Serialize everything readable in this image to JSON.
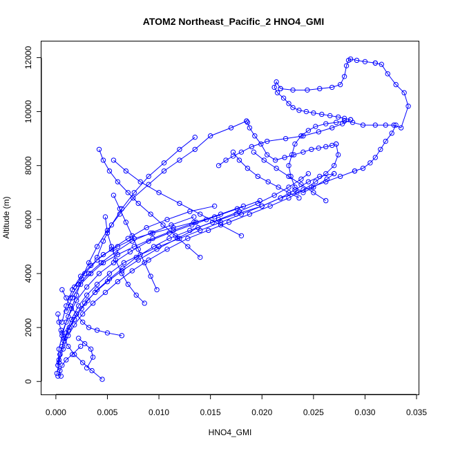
{
  "chart_data": {
    "type": "line",
    "title": "ATOM2 Northeast_Pacific_2 HNO4_GMI",
    "xlabel": "HNO4_GMI",
    "ylabel": "Altitude (m)",
    "xlim": [
      -0.0014,
      0.0352
    ],
    "ylim": [
      -480,
      12600
    ],
    "x_ticks": [
      0.0,
      0.005,
      0.01,
      0.015,
      0.02,
      0.025,
      0.03,
      0.035
    ],
    "x_tick_labels": [
      "0.000",
      "0.005",
      "0.010",
      "0.015",
      "0.020",
      "0.025",
      "0.030",
      "0.035"
    ],
    "y_ticks": [
      0,
      2000,
      4000,
      6000,
      8000,
      10000,
      12000
    ],
    "y_tick_labels": [
      "0",
      "2000",
      "4000",
      "6000",
      "8000",
      "10000",
      "12000"
    ],
    "marker": "open-circle",
    "color": "#0000ff",
    "series": [
      {
        "x": [
          0.0005,
          0.0002,
          0.0004,
          0.0008,
          0.0012,
          0.0018,
          0.0025,
          0.0031,
          0.004,
          0.0052,
          0.0065,
          0.0078,
          0.0095,
          0.011,
          0.013,
          0.0152,
          0.0175,
          0.02,
          0.0218,
          0.0232,
          0.0245,
          0.0256,
          0.027
        ],
        "y": [
          200,
          600,
          1000,
          1500,
          1900,
          2300,
          2700,
          3000,
          3400,
          3800,
          4200,
          4600,
          5000,
          5300,
          5600,
          5900,
          6200,
          6500,
          6800,
          7100,
          7400,
          7600,
          7700
        ]
      },
      {
        "x": [
          0.027,
          0.0263,
          0.025,
          0.024,
          0.0232,
          0.0228,
          0.0226,
          0.0229,
          0.0232,
          0.0238,
          0.0245,
          0.0252,
          0.0262,
          0.0272,
          0.028,
          0.0288,
          0.0298,
          0.031,
          0.032,
          0.0328,
          0.0335,
          0.0342,
          0.0338,
          0.033,
          0.0322,
          0.0316,
          0.031
        ],
        "y": [
          7700,
          7500,
          7200,
          7000,
          7200,
          7600,
          8000,
          8400,
          8800,
          9100,
          9300,
          9450,
          9550,
          9600,
          9650,
          9600,
          9500,
          9500,
          9500,
          9500,
          9400,
          10200,
          10700,
          11000,
          11400,
          11750,
          11800
        ]
      },
      {
        "x": [
          0.031,
          0.03,
          0.0292,
          0.0286,
          0.0284,
          0.0282,
          0.028,
          0.0276,
          0.0268,
          0.0256,
          0.0244,
          0.023,
          0.0218
        ],
        "y": [
          11800,
          11850,
          11900,
          11950,
          11900,
          11700,
          11300,
          11000,
          10900,
          10850,
          10800,
          10800,
          10850
        ]
      },
      {
        "x": [
          0.0218,
          0.0214,
          0.0212,
          0.0215,
          0.0221,
          0.0226,
          0.023,
          0.0236,
          0.0243,
          0.025,
          0.0258,
          0.0266,
          0.0274,
          0.028,
          0.0286
        ],
        "y": [
          10850,
          11100,
          10900,
          10700,
          10500,
          10300,
          10150,
          10050,
          10000,
          9950,
          9900,
          9850,
          9800,
          9750,
          9700
        ]
      },
      {
        "x": [
          0.0286,
          0.0278,
          0.0268,
          0.0255,
          0.024,
          0.0223,
          0.0205,
          0.019,
          0.018,
          0.0172,
          0.0165,
          0.0158
        ],
        "y": [
          9700,
          9550,
          9400,
          9250,
          9100,
          9000,
          8900,
          8700,
          8500,
          8350,
          8200,
          8000
        ]
      },
      {
        "x": [
          0.0001,
          0.0003,
          0.0007,
          0.0012,
          0.0018,
          0.0026,
          0.0036,
          0.0048,
          0.006,
          0.0074,
          0.009,
          0.0108,
          0.0128,
          0.0148,
          0.0168,
          0.0188,
          0.0208,
          0.0226,
          0.024,
          0.0252,
          0.0262,
          0.027,
          0.0274,
          0.0272
        ],
        "y": [
          300,
          700,
          1200,
          1700,
          2100,
          2500,
          2900,
          3300,
          3700,
          4100,
          4500,
          4900,
          5300,
          5600,
          5900,
          6200,
          6500,
          6800,
          7100,
          7400,
          7700,
          8000,
          8400,
          8800
        ]
      },
      {
        "x": [
          0.0272,
          0.0268,
          0.0262,
          0.0255,
          0.0248,
          0.024,
          0.0231,
          0.0222,
          0.0213,
          0.0205,
          0.0199,
          0.0193,
          0.0188,
          0.0186,
          0.0185
        ],
        "y": [
          8800,
          8750,
          8700,
          8650,
          8600,
          8500,
          8400,
          8300,
          8200,
          8400,
          8800,
          9100,
          9400,
          9600,
          9650
        ]
      },
      {
        "x": [
          0.0185,
          0.017,
          0.015,
          0.0135,
          0.012,
          0.0105,
          0.009,
          0.0075,
          0.0062,
          0.005,
          0.004,
          0.0032,
          0.0025,
          0.002,
          0.0015,
          0.001,
          0.0006,
          0.0003,
          0.0002
        ],
        "y": [
          9650,
          9400,
          9100,
          8600,
          8200,
          7800,
          7300,
          6800,
          6200,
          5600,
          5000,
          4400,
          3800,
          3200,
          2700,
          2200,
          1700,
          1200,
          600
        ]
      },
      {
        "x": [
          0.0003,
          0.0006,
          0.001,
          0.0015,
          0.0022,
          0.003,
          0.004,
          0.0052,
          0.0066,
          0.0082,
          0.01,
          0.012,
          0.014,
          0.016,
          0.018,
          0.02,
          0.0218,
          0.0234,
          0.0248,
          0.0262,
          0.0276,
          0.029
        ],
        "y": [
          800,
          1300,
          1800,
          2300,
          2800,
          3200,
          3600,
          4000,
          4400,
          4700,
          5000,
          5300,
          5600,
          5900,
          6200,
          6500,
          6800,
          7000,
          7200,
          7400,
          7600,
          7800
        ]
      },
      {
        "x": [
          0.029,
          0.0298,
          0.0305,
          0.031,
          0.0315,
          0.032,
          0.0326,
          0.033
        ],
        "y": [
          7800,
          7900,
          8100,
          8300,
          8600,
          8900,
          9200,
          9500
        ]
      },
      {
        "x": [
          0.0004,
          0.0008,
          0.0013,
          0.002,
          0.0028,
          0.0038,
          0.005,
          0.0064,
          0.008,
          0.0098,
          0.0118,
          0.0138,
          0.0158,
          0.0178,
          0.0196,
          0.0212,
          0.0226,
          0.0238,
          0.0245
        ],
        "y": [
          1000,
          1500,
          2000,
          2500,
          2900,
          3300,
          3700,
          4100,
          4500,
          4900,
          5300,
          5700,
          6000,
          6300,
          6600,
          6900,
          7200,
          7500,
          7700
        ]
      },
      {
        "x": [
          0.0006,
          0.0012,
          0.002,
          0.003,
          0.0042,
          0.0056,
          0.0072,
          0.009,
          0.011,
          0.0132,
          0.0154,
          0.0176,
          0.0198
        ],
        "y": [
          1800,
          2400,
          3000,
          3500,
          4000,
          4400,
          4800,
          5200,
          5500,
          5800,
          6100,
          6400,
          6700
        ]
      },
      {
        "x": [
          0.001,
          0.0016,
          0.0024,
          0.0034,
          0.0046,
          0.006,
          0.0076,
          0.0094,
          0.0114,
          0.0136,
          0.016,
          0.0182
        ],
        "y": [
          2600,
          3100,
          3600,
          4000,
          4400,
          4700,
          5000,
          5300,
          5600,
          5900,
          6200,
          6500
        ]
      },
      {
        "x": [
          0.0014,
          0.0022,
          0.0032,
          0.0044,
          0.0058,
          0.0074,
          0.0092,
          0.0112,
          0.0134
        ],
        "y": [
          3100,
          3600,
          4000,
          4400,
          4800,
          5200,
          5500,
          5800,
          6100
        ]
      },
      {
        "x": [
          0.0018,
          0.0028,
          0.004,
          0.0054,
          0.007,
          0.0088,
          0.0108,
          0.013,
          0.0154
        ],
        "y": [
          3500,
          4000,
          4500,
          4900,
          5300,
          5700,
          6000,
          6300,
          6500
        ]
      },
      {
        "x": [
          0.0135,
          0.012,
          0.0105,
          0.009,
          0.0076,
          0.0064,
          0.0054,
          0.0046,
          0.004
        ],
        "y": [
          9050,
          8600,
          8100,
          7600,
          7000,
          6400,
          5800,
          5200,
          4600
        ]
      },
      {
        "x": [
          0.0045,
          0.0035,
          0.0026,
          0.0018,
          0.0012,
          0.0008,
          0.0005,
          0.0003,
          0.0002
        ],
        "y": [
          80,
          400,
          700,
          1000,
          1300,
          1600,
          1900,
          2200,
          2500
        ]
      },
      {
        "x": [
          0.0064,
          0.005,
          0.004,
          0.0032,
          0.0026,
          0.002,
          0.0014,
          0.001,
          0.0006
        ],
        "y": [
          1700,
          1800,
          1900,
          2000,
          2200,
          2500,
          2800,
          3100,
          3400
        ]
      },
      {
        "x": [
          0.0006,
          0.001,
          0.0016,
          0.0024,
          0.0034,
          0.0046,
          0.006,
          0.0076,
          0.0094,
          0.0114,
          0.0134,
          0.0146
        ],
        "y": [
          2200,
          2800,
          3400,
          3900,
          4300,
          4700,
          5000,
          5300,
          5500,
          5700,
          5900,
          6000
        ]
      },
      {
        "x": [
          0.0086,
          0.0078,
          0.007,
          0.0064,
          0.0058,
          0.0054,
          0.005,
          0.0048
        ],
        "y": [
          2900,
          3200,
          3600,
          4000,
          4500,
          5000,
          5500,
          6100
        ]
      },
      {
        "x": [
          0.0098,
          0.0092,
          0.0086,
          0.008,
          0.0074,
          0.0068,
          0.0062,
          0.0056
        ],
        "y": [
          3400,
          3900,
          4400,
          4900,
          5400,
          5900,
          6400,
          6900
        ]
      },
      {
        "x": [
          0.014,
          0.0128,
          0.0116,
          0.0104,
          0.0092,
          0.008,
          0.007,
          0.006,
          0.0052,
          0.0046,
          0.0042
        ],
        "y": [
          4600,
          5000,
          5400,
          5800,
          6200,
          6600,
          7000,
          7400,
          7800,
          8200,
          8600
        ]
      },
      {
        "x": [
          0.018,
          0.016,
          0.014,
          0.012,
          0.01,
          0.0082,
          0.0068,
          0.0056
        ],
        "y": [
          5400,
          5800,
          6200,
          6600,
          7000,
          7400,
          7800,
          8200
        ]
      },
      {
        "x": [
          0.0236,
          0.0226,
          0.0216,
          0.0206,
          0.0196,
          0.0186,
          0.0178,
          0.0172
        ],
        "y": [
          6800,
          7000,
          7200,
          7400,
          7600,
          7900,
          8200,
          8500
        ]
      },
      {
        "x": [
          0.0262,
          0.025,
          0.0238,
          0.0226,
          0.0214,
          0.0202,
          0.0192
        ],
        "y": [
          6700,
          7000,
          7300,
          7600,
          7900,
          8200,
          8500
        ]
      },
      {
        "x": [
          0.0002,
          0.0004,
          0.0006,
          0.001,
          0.0016,
          0.0024
        ],
        "y": [
          200,
          400,
          600,
          800,
          1000,
          1300
        ]
      },
      {
        "x": [
          0.003,
          0.0036,
          0.0034,
          0.0028,
          0.0022
        ],
        "y": [
          500,
          900,
          1200,
          1400,
          1600
        ]
      }
    ]
  }
}
